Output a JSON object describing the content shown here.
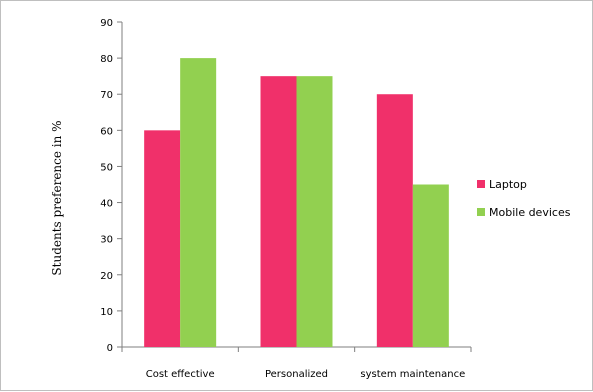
{
  "chart_data": {
    "type": "bar",
    "title": "",
    "xlabel": "",
    "ylabel": "Students preference in %",
    "ylim": [
      0,
      90
    ],
    "ytick_step": 10,
    "grid": false,
    "legend_position": "right",
    "categories": [
      "Cost effective",
      "Personalized",
      "system maintenance"
    ],
    "series": [
      {
        "name": "Laptop",
        "color": "#f0306a",
        "values": [
          60,
          75,
          70
        ]
      },
      {
        "name": "Mobile devices",
        "color": "#92d050",
        "values": [
          80,
          75,
          45
        ]
      }
    ]
  }
}
